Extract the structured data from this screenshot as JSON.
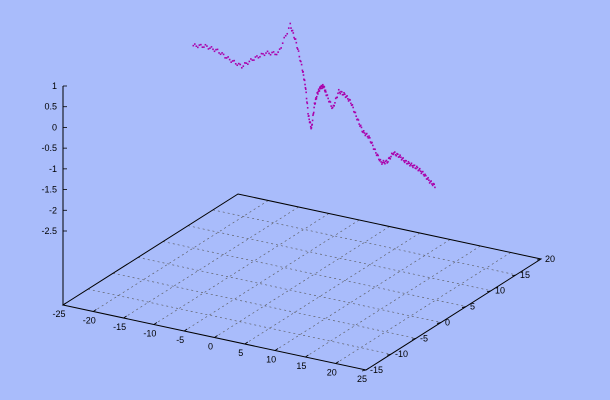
{
  "background_color": "#a9bcfb",
  "chart_data": {
    "type": "scatter",
    "projection": "3d",
    "title": "",
    "xlabel": "",
    "ylabel": "",
    "zlabel": "",
    "grid": true,
    "series_color": "#aa00aa",
    "xlim": [
      -25,
      25
    ],
    "ylim": [
      -15,
      20
    ],
    "zlim": [
      -2.5,
      1
    ],
    "x_ticks": [
      "-25",
      "-20",
      "-15",
      "-10",
      "-5",
      "0",
      "5",
      "10",
      "15",
      "20",
      "25"
    ],
    "y_ticks": [
      "-15",
      "-10",
      "-5",
      "0",
      "5",
      "10",
      "15",
      "20"
    ],
    "z_ticks": [
      "1",
      "0.5",
      "0",
      "-0.5",
      "-1",
      "-1.5",
      "-2",
      "-2.5"
    ],
    "series": [
      {
        "points_note": "",
        "x": [
          -20,
          -18,
          -16,
          -14,
          -12,
          -10,
          -8,
          -6,
          -4,
          -3,
          -2,
          -1.5,
          -1,
          -0.5,
          0,
          0.5,
          1,
          1.5,
          2,
          3,
          4,
          5,
          6,
          7,
          8,
          9,
          10,
          11,
          12,
          13,
          14,
          15,
          16,
          17,
          18,
          19,
          20
        ],
        "y": [
          5,
          5,
          5,
          5,
          5,
          5,
          5,
          5,
          5,
          5,
          5,
          5,
          5,
          5,
          5,
          5,
          5,
          5,
          5,
          5,
          5,
          5,
          5,
          5,
          5,
          5,
          5,
          5,
          5,
          5,
          5,
          5,
          5,
          5,
          5,
          5,
          5
        ],
        "z": [
          0.6,
          0.65,
          0.6,
          0.45,
          0.35,
          0.6,
          0.8,
          0.85,
          1.6,
          1.2,
          0.6,
          0.2,
          -0.5,
          -0.8,
          -0.2,
          0.1,
          0.25,
          0.3,
          0.1,
          -0.2,
          0.25,
          0.2,
          0.05,
          -0.3,
          -0.6,
          -0.7,
          -1.0,
          -1.25,
          -1.2,
          -0.95,
          -1.0,
          -1.1,
          -1.15,
          -1.2,
          -1.3,
          -1.45,
          -1.55
        ]
      }
    ]
  }
}
